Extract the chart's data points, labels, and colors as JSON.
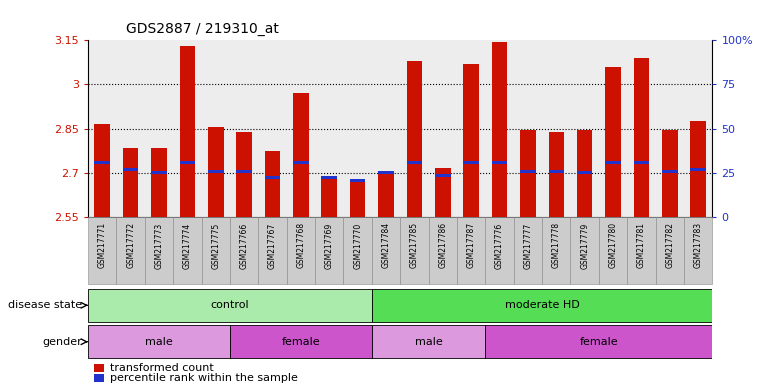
{
  "title": "GDS2887 / 219310_at",
  "samples": [
    "GSM217771",
    "GSM217772",
    "GSM217773",
    "GSM217774",
    "GSM217775",
    "GSM217766",
    "GSM217767",
    "GSM217768",
    "GSM217769",
    "GSM217770",
    "GSM217784",
    "GSM217785",
    "GSM217786",
    "GSM217787",
    "GSM217776",
    "GSM217777",
    "GSM217778",
    "GSM217779",
    "GSM217780",
    "GSM217781",
    "GSM217782",
    "GSM217783"
  ],
  "bar_tops": [
    2.865,
    2.785,
    2.785,
    3.13,
    2.855,
    2.84,
    2.775,
    2.97,
    2.685,
    2.675,
    2.7,
    3.08,
    2.715,
    3.07,
    3.145,
    2.845,
    2.84,
    2.845,
    3.06,
    3.09,
    2.845,
    2.875
  ],
  "blue_markers": [
    2.735,
    2.71,
    2.7,
    2.735,
    2.705,
    2.705,
    2.685,
    2.735,
    2.685,
    2.675,
    2.7,
    2.735,
    2.69,
    2.735,
    2.735,
    2.705,
    2.705,
    2.7,
    2.735,
    2.735,
    2.705,
    2.71
  ],
  "ymin": 2.55,
  "ymax": 3.15,
  "yticks": [
    2.55,
    2.7,
    2.85,
    3.0,
    3.15
  ],
  "ytick_labels": [
    "2.55",
    "2.7",
    "2.85",
    "3",
    "3.15"
  ],
  "y2ticks_pct": [
    0,
    25,
    50,
    75,
    100
  ],
  "y2tick_labels": [
    "0",
    "25",
    "50",
    "75",
    "100%"
  ],
  "hlines": [
    2.7,
    2.85,
    3.0
  ],
  "bar_color": "#cc1100",
  "blue_color": "#2233cc",
  "bar_width": 0.55,
  "disease_state_groups": [
    {
      "label": "control",
      "start": 0,
      "end": 10,
      "color": "#aaeaaa"
    },
    {
      "label": "moderate HD",
      "start": 10,
      "end": 22,
      "color": "#55dd55"
    }
  ],
  "gender_groups": [
    {
      "label": "male",
      "start": 0,
      "end": 5,
      "color": "#dd99dd"
    },
    {
      "label": "female",
      "start": 5,
      "end": 10,
      "color": "#cc55cc"
    },
    {
      "label": "male",
      "start": 10,
      "end": 14,
      "color": "#dd99dd"
    },
    {
      "label": "female",
      "start": 14,
      "end": 22,
      "color": "#cc55cc"
    }
  ],
  "disease_label": "disease state",
  "gender_label": "gender",
  "legend_items": [
    {
      "label": "transformed count",
      "color": "#cc1100"
    },
    {
      "label": "percentile rank within the sample",
      "color": "#2233cc"
    }
  ],
  "label_col_color": "#cccccc"
}
